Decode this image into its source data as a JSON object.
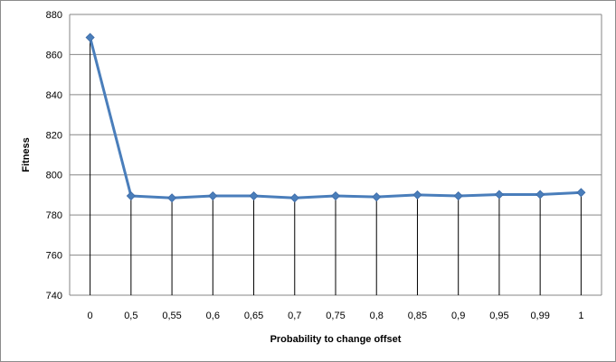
{
  "chart_data": {
    "type": "line",
    "title": "",
    "xlabel": "Probability to change offset",
    "ylabel": "Fitness",
    "categories": [
      "0",
      "0,5",
      "0,55",
      "0,6",
      "0,65",
      "0,7",
      "0,75",
      "0,8",
      "0,85",
      "0,9",
      "0,95",
      "0,99",
      "1"
    ],
    "series": [
      {
        "values": [
          868.5,
          789.5,
          788.5,
          789.5,
          789.5,
          788.5,
          789.5,
          789,
          790,
          789.5,
          790.2,
          790.2,
          791.2
        ]
      }
    ],
    "ylim": [
      740,
      880
    ],
    "yticks": [
      740,
      760,
      780,
      800,
      820,
      840,
      860,
      880
    ],
    "grid": "horizontal",
    "drop_lines": true,
    "legend": "none",
    "colors": {
      "line": "#4a7ebb",
      "marker": "#4a7ebb",
      "grid": "#868686",
      "drop": "#000000"
    }
  }
}
